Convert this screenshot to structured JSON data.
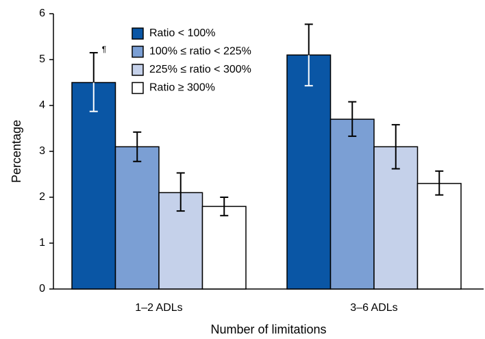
{
  "chart_data": {
    "type": "bar",
    "x_label": "Number of limitations",
    "y_label": "Percentage",
    "categories": [
      "1–2 ADLs",
      "3–6 ADLs"
    ],
    "series": [
      {
        "name": "Ratio < 100%",
        "color": "#0a56a5",
        "error_color": "#ffffff",
        "values": [
          4.5,
          5.1
        ],
        "lower": [
          3.87,
          4.43
        ],
        "upper": [
          5.15,
          5.77
        ]
      },
      {
        "name": "100% ≤ ratio < 225%",
        "color": "#7b9fd4",
        "error_color": "#000000",
        "values": [
          3.1,
          3.7
        ],
        "lower": [
          2.78,
          3.33
        ],
        "upper": [
          3.42,
          4.08
        ]
      },
      {
        "name": "225% ≤ ratio < 300%",
        "color": "#c5d1ea",
        "error_color": "#000000",
        "values": [
          2.1,
          3.1
        ],
        "lower": [
          1.7,
          2.62
        ],
        "upper": [
          2.53,
          3.58
        ]
      },
      {
        "name": "Ratio ≥ 300%",
        "color": "#ffffff",
        "error_color": "#000000",
        "values": [
          1.8,
          2.3
        ],
        "lower": [
          1.6,
          2.05
        ],
        "upper": [
          2.0,
          2.57
        ]
      }
    ],
    "annotation": "¶",
    "ylim": [
      0,
      6
    ],
    "yticks": [
      0,
      1,
      2,
      3,
      4,
      5,
      6
    ],
    "grid": false
  }
}
